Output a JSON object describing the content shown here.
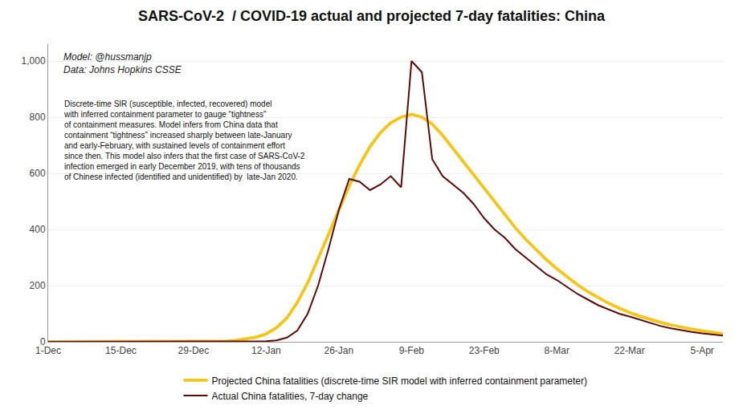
{
  "chart_data": {
    "type": "line",
    "title": "SARS-CoV-2  / COVID-19 actual and projected 7-day fatalities: China",
    "subtitle": "Model: @hussmanjp\nData: Johns Hopkins CSSE",
    "annotation": "Discrete-time SIR (susceptible, infected, recovered) model\nwith inferred containment parameter to gauge “tightness”\nof containment measures. Model infers from China data that\ncontainment “tightness” increased sharply between late-January\nand early-February, with sustained levels of containment effort\nsince then. This model also infers that the first case of SARS-CoV-2\ninfection emerged in early December 2019, with tens of thousands\nof Chinese infected (identified and unidentified) by  late-Jan 2020.",
    "x": [
      0,
      2,
      4,
      6,
      8,
      10,
      12,
      14,
      16,
      18,
      20,
      22,
      24,
      26,
      28,
      30,
      32,
      34,
      36,
      38,
      40,
      42,
      44,
      46,
      48,
      50,
      52,
      54,
      56,
      58,
      60,
      62,
      64,
      66,
      68,
      70,
      72,
      74,
      76,
      78,
      80,
      82,
      84,
      86,
      88,
      90,
      92,
      94,
      96,
      98,
      100,
      102,
      104,
      106,
      108,
      110,
      112,
      114,
      116,
      118,
      120,
      122,
      124,
      126,
      128,
      130
    ],
    "series": [
      {
        "name": "Projected China fatalities (discrete-time SIR model with inferred containment parameter)",
        "color": "#F5C518",
        "values": [
          0.0,
          0.0,
          0.0,
          0.0,
          0.0,
          0.0,
          0.0,
          0.0,
          0.0,
          0.0,
          0.0,
          0.0,
          0.0,
          0.0,
          0.0,
          0.3,
          0.8,
          2.0,
          4.5,
          9.0,
          16.0,
          28.0,
          50.0,
          85.0,
          140.0,
          210.0,
          295.0,
          385.0,
          470.0,
          555.0,
          630.0,
          695.0,
          745.0,
          780.0,
          800.0,
          810.0,
          800.0,
          775.0,
          735.0,
          688.0,
          640.0,
          592.0,
          543.0,
          496.0,
          450.0,
          406.0,
          365.0,
          327.0,
          292.0,
          260.0,
          230.0,
          203.0,
          178.0,
          156.0,
          137.0,
          120.0,
          104.0,
          91.0,
          79.0,
          69.0,
          60.0,
          52.0,
          45.0,
          39.0,
          34.0,
          29.0
        ]
      },
      {
        "name": "Actual China fatalities, 7-day change",
        "color": "#5C0A0A",
        "values": [
          0.0,
          0.0,
          0.0,
          0.0,
          0.0,
          0.0,
          0.0,
          0.0,
          0.0,
          0.0,
          0.0,
          0.0,
          0.0,
          0.0,
          0.0,
          0.0,
          0.0,
          0.0,
          0.0,
          0.0,
          0.5,
          2.0,
          5.0,
          15.0,
          40.0,
          100.0,
          200.0,
          330.0,
          470.0,
          580.0,
          570.0,
          540.0,
          560.0,
          590.0,
          550.0,
          1000.0,
          960.0,
          650.0,
          590.0,
          560.0,
          530.0,
          490.0,
          440.0,
          400.0,
          370.0,
          330.0,
          300.0,
          270.0,
          240.0,
          220.0,
          195.0,
          170.0,
          150.0,
          130.0,
          115.0,
          100.0,
          90.0,
          78.0,
          66.0,
          56.0,
          48.0,
          41.0,
          35.0,
          30.0,
          26.0,
          22.0
        ]
      }
    ],
    "xlim": [
      0,
      130
    ],
    "xticks": [
      {
        "value": 0,
        "label": "1-Dec"
      },
      {
        "value": 14,
        "label": "15-Dec"
      },
      {
        "value": 28,
        "label": "29-Dec"
      },
      {
        "value": 42,
        "label": "12-Jan"
      },
      {
        "value": 56,
        "label": "26-Jan"
      },
      {
        "value": 70,
        "label": "9-Feb"
      },
      {
        "value": 84,
        "label": "23-Feb"
      },
      {
        "value": 98,
        "label": "8-Mar"
      },
      {
        "value": 112,
        "label": "22-Mar"
      },
      {
        "value": 126,
        "label": "5-Apr"
      }
    ],
    "ylim": [
      0,
      1060
    ],
    "yticks": [
      0,
      200,
      400,
      600,
      800,
      {
        "value": 1000,
        "label": "1,000"
      }
    ],
    "grid": "y",
    "legend": "bottom"
  }
}
